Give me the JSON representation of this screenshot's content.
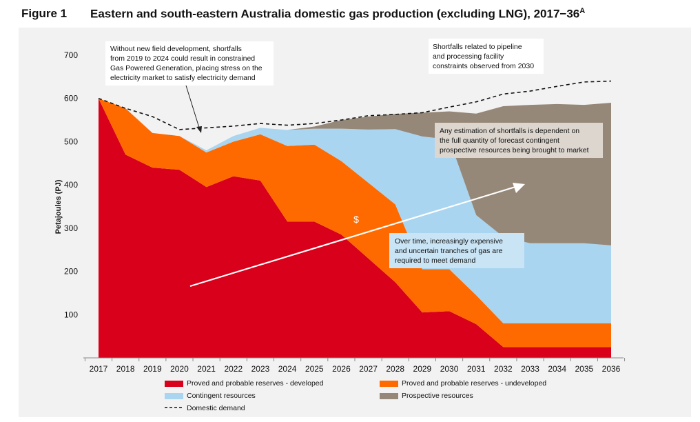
{
  "figure": {
    "number": "Figure 1",
    "title": "Eastern and south-eastern Australia domestic gas production (excluding LNG), 2017−36",
    "title_sup": "A"
  },
  "chart_data": {
    "type": "area",
    "stacked": true,
    "ylabel": "Petajoules (PJ)",
    "xlabel": "",
    "ylim": [
      0,
      700
    ],
    "yticks": [
      100,
      200,
      300,
      400,
      500,
      600,
      700
    ],
    "grid": false,
    "legend_position": "bottom",
    "categories": [
      "2017",
      "2018",
      "2019",
      "2020",
      "2021",
      "2022",
      "2023",
      "2024",
      "2025",
      "2026",
      "2027",
      "2028",
      "2029",
      "2030",
      "2031",
      "2032",
      "2033",
      "2034",
      "2035",
      "2036"
    ],
    "series": [
      {
        "name": "Proved and probable reserves - developed",
        "color": "#d9001b",
        "values": [
          600,
          470,
          440,
          435,
          395,
          420,
          410,
          315,
          315,
          285,
          230,
          175,
          105,
          108,
          78,
          25,
          25,
          25,
          25,
          25
        ]
      },
      {
        "name": "Proved and probable reserves - undeveloped",
        "color": "#ff6a00",
        "values": [
          0,
          107,
          80,
          78,
          80,
          80,
          107,
          175,
          178,
          170,
          175,
          180,
          100,
          97,
          67,
          55,
          55,
          55,
          55,
          55
        ]
      },
      {
        "name": "Contingent resources",
        "color": "#a9d5f1",
        "values": [
          0,
          0,
          0,
          0,
          5,
          13,
          15,
          37,
          37,
          75,
          123,
          174,
          307,
          300,
          185,
          200,
          185,
          185,
          185,
          180
        ]
      },
      {
        "name": "Prospective resources",
        "color": "#968878",
        "values": [
          0,
          0,
          0,
          0,
          0,
          0,
          0,
          0,
          5,
          20,
          30,
          35,
          55,
          65,
          235,
          302,
          320,
          322,
          320,
          330
        ]
      }
    ],
    "lines": [
      {
        "name": "Domestic demand",
        "style": "dashed",
        "color": "#111111",
        "values": [
          600,
          577,
          558,
          528,
          532,
          536,
          542,
          538,
          542,
          550,
          560,
          563,
          567,
          580,
          592,
          610,
          617,
          628,
          638,
          640
        ]
      }
    ],
    "annotations": [
      {
        "id": "annotation-field-development",
        "lines": [
          "Without new field development, shortfalls",
          "from 2019 to 2024 could result in constrained",
          "Gas Powered Generation, placing stress on the",
          "electricity market to satisfy electricity demand"
        ]
      },
      {
        "id": "annotation-pipeline",
        "lines": [
          "Shortfalls related to pipeline",
          "and processing facility",
          "constraints observed from 2030"
        ]
      },
      {
        "id": "annotation-estimation",
        "lines": [
          "Any estimation of shortfalls is dependent on",
          "the full quantity of forecast contingent",
          "prospective resources being brought to market"
        ]
      },
      {
        "id": "annotation-over-time",
        "lines": [
          "Over time, increasingly expensive",
          "and uncertain tranches of gas are",
          "required to meet demand"
        ]
      }
    ],
    "arrow_label": "$"
  }
}
